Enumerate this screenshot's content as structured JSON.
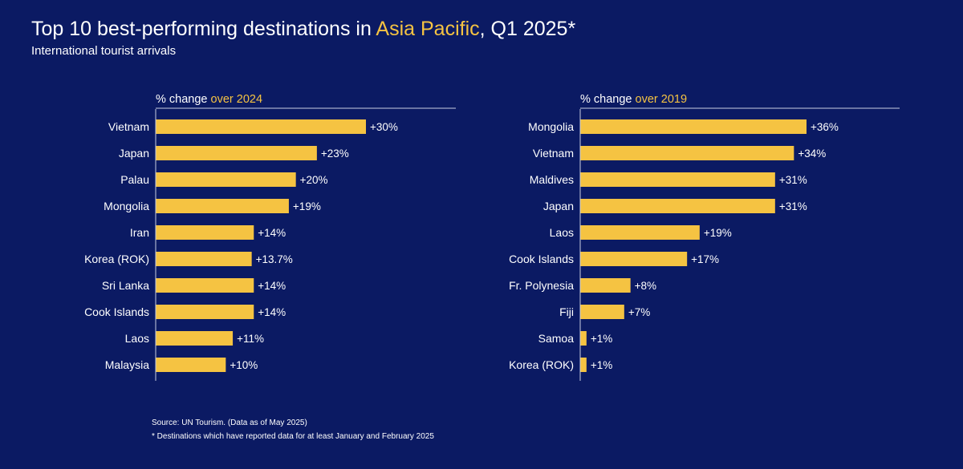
{
  "header": {
    "title_before": "Top 10 best-performing destinations in ",
    "title_highlight": "Asia Pacific",
    "title_after": ", Q1 2025*",
    "subtitle": "International tourist arrivals"
  },
  "colors": {
    "background": "#0b1a63",
    "bar": "#f5c342",
    "highlight": "#f5c342",
    "text": "#ffffff"
  },
  "footer": {
    "source": "Source: UN Tourism. (Data as of May 2025)",
    "note": "* Destinations which have reported data for at least January and February 2025"
  },
  "chart_data": [
    {
      "type": "bar",
      "orientation": "horizontal",
      "title_prefix": "% change ",
      "title_highlight": "over 2024",
      "categories": [
        "Vietnam",
        "Japan",
        "Palau",
        "Mongolia",
        "Iran",
        "Korea (ROK)",
        "Sri Lanka",
        "Cook Islands",
        "Laos",
        "Malaysia"
      ],
      "values": [
        30,
        23,
        20,
        19,
        14,
        13.7,
        14,
        14,
        11,
        10
      ],
      "labels": [
        "+30%",
        "+23%",
        "+20%",
        "+19%",
        "+14%",
        "+13.7%",
        "+14%",
        "+14%",
        "+11%",
        "+10%"
      ],
      "xlim": [
        0,
        40
      ],
      "grid": false
    },
    {
      "type": "bar",
      "orientation": "horizontal",
      "title_prefix": "% change ",
      "title_highlight": "over 2019",
      "categories": [
        "Mongolia",
        "Vietnam",
        "Maldives",
        "Japan",
        "Laos",
        "Cook Islands",
        "Fr. Polynesia",
        "Fiji",
        "Samoa",
        "Korea (ROK)"
      ],
      "values": [
        36,
        34,
        31,
        31,
        19,
        17,
        8,
        7,
        1,
        1
      ],
      "labels": [
        "+36%",
        "+34%",
        "+31%",
        "+31%",
        "+19%",
        "+17%",
        "+8%",
        "+7%",
        "+1%",
        "+1%"
      ],
      "xlim": [
        0,
        48
      ],
      "grid": false
    }
  ]
}
